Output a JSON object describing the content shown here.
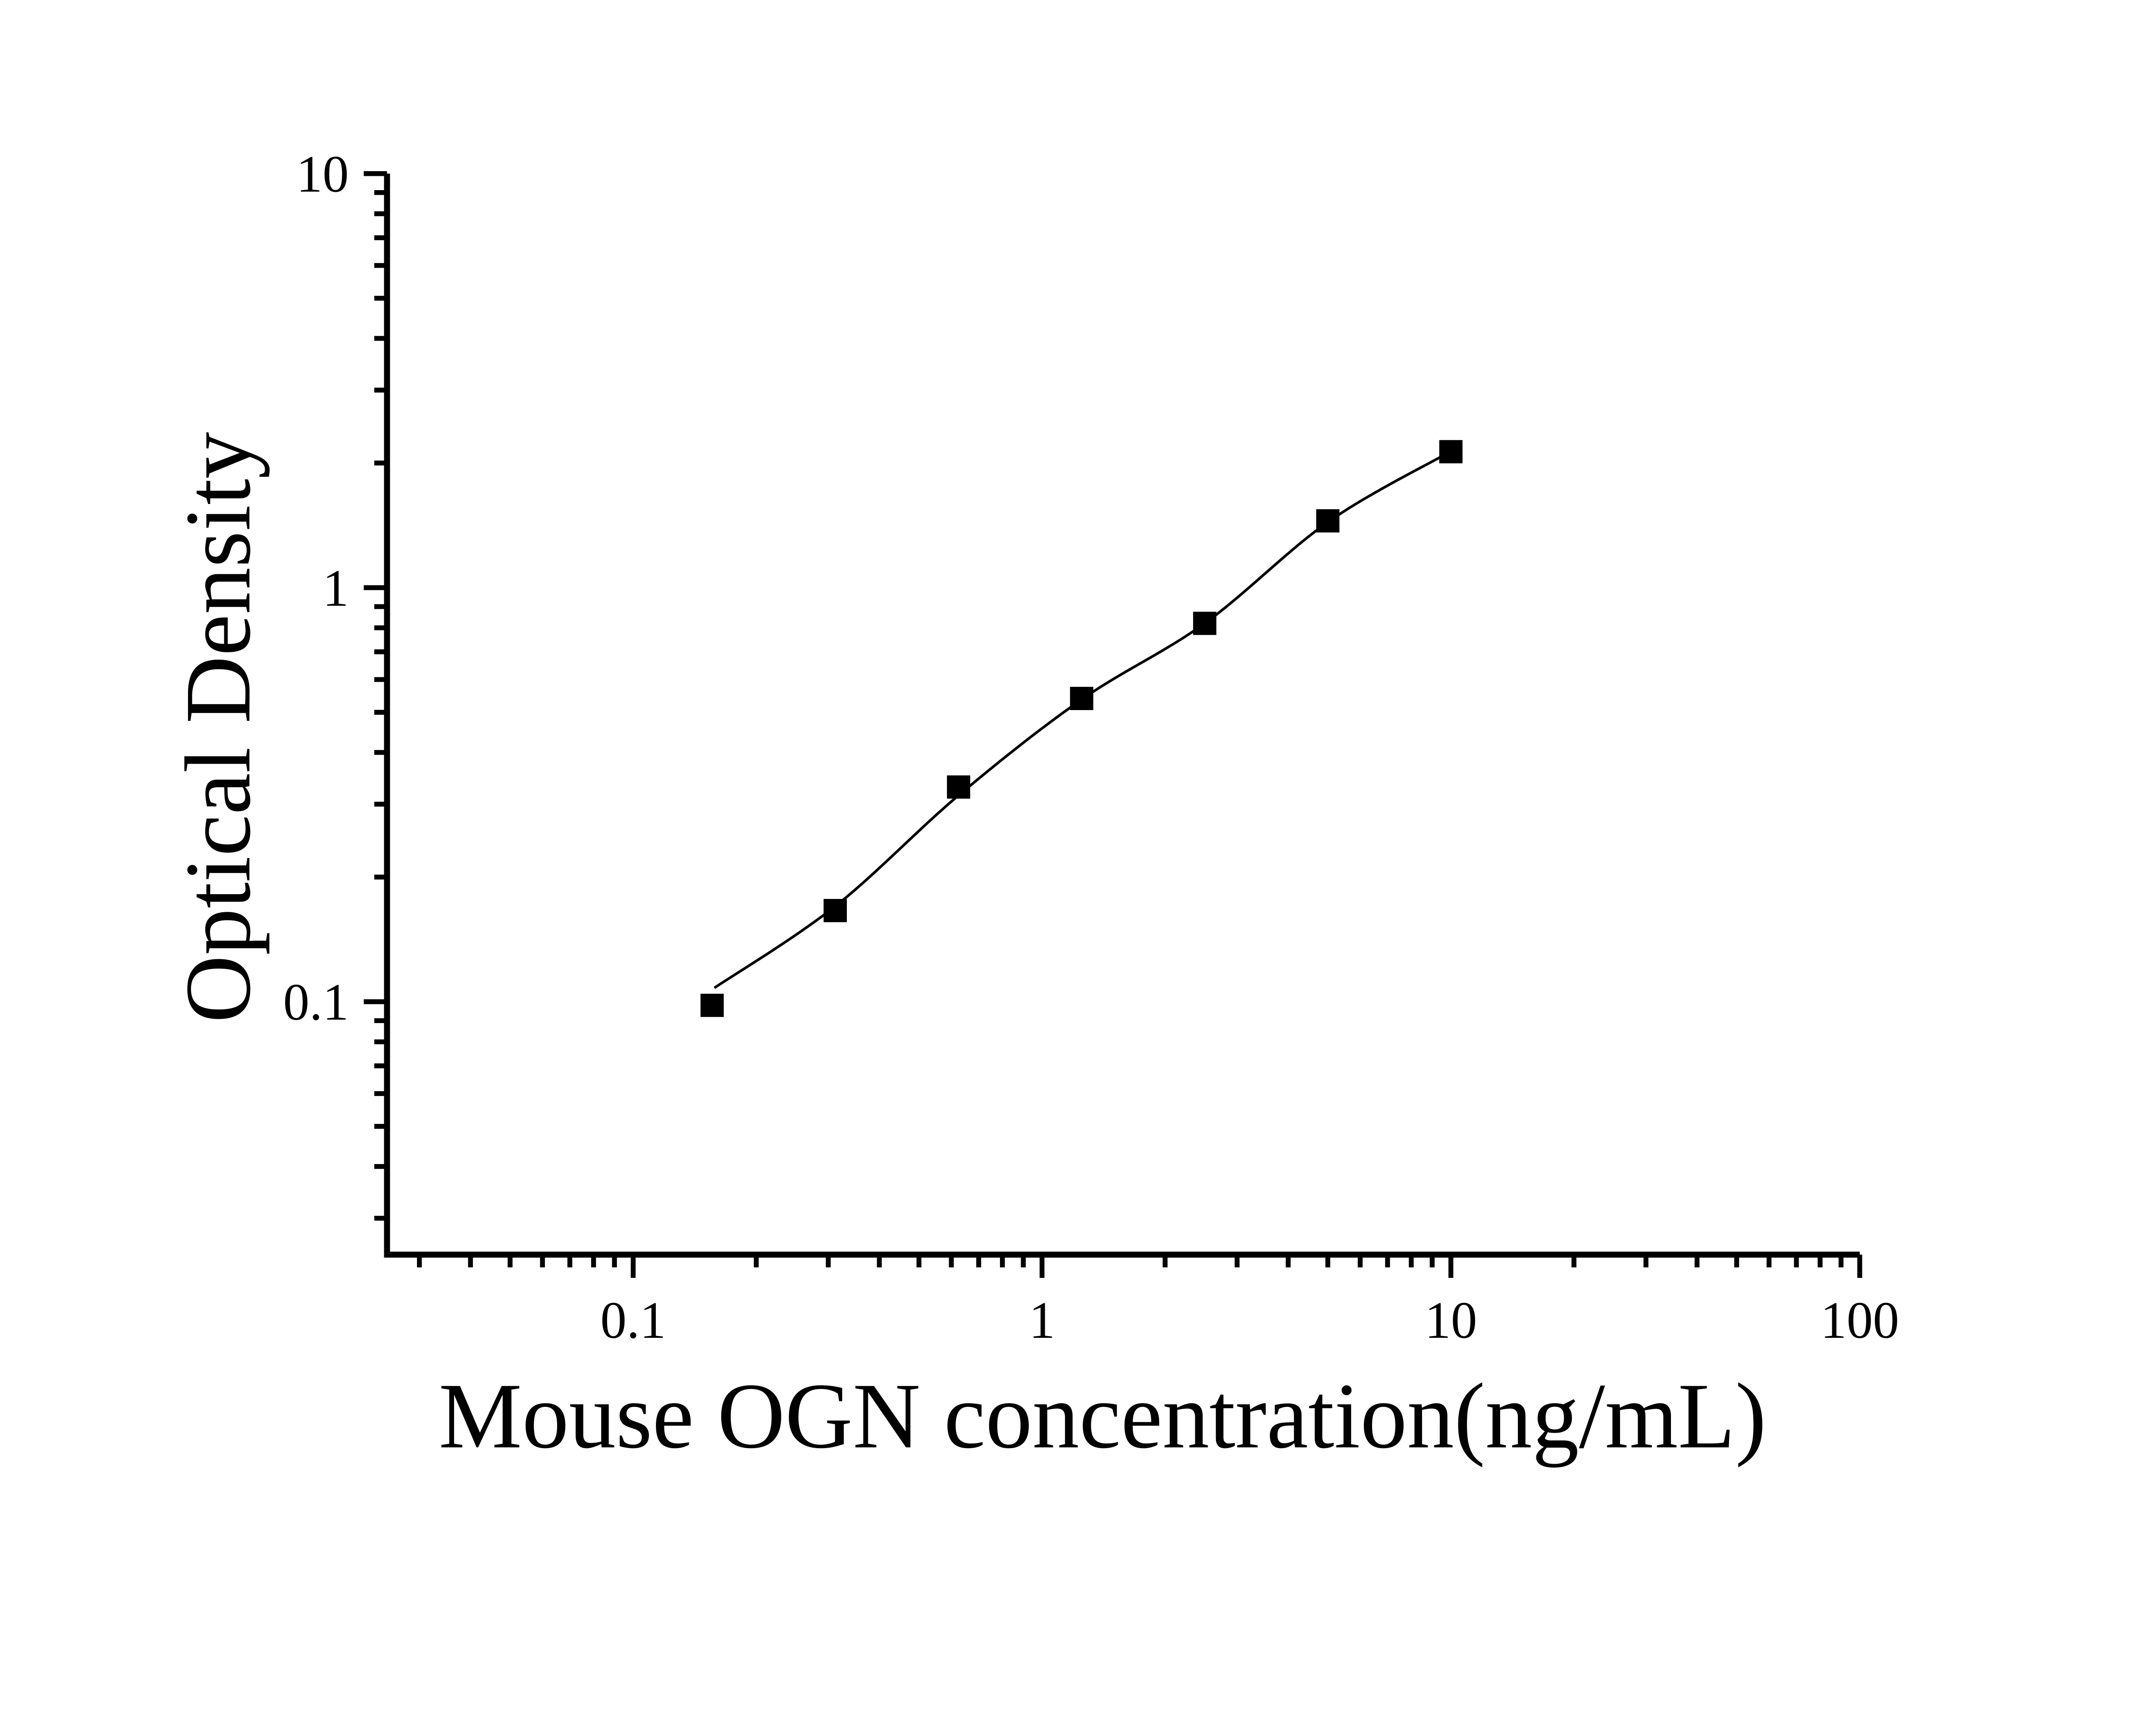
{
  "chart_data": {
    "type": "scatter",
    "title": "",
    "xlabel": "Mouse OGN concentration(ng/mL)",
    "ylabel": "Optical Density",
    "x_scale": "log",
    "y_scale": "log",
    "xlim": [
      0.025,
      100
    ],
    "ylim": [
      0.0245,
      10
    ],
    "grid": false,
    "legend": false,
    "marker": "filled-square",
    "colors": {
      "ink": "#000000",
      "background": "#ffffff"
    },
    "x_major_ticks": [
      {
        "value": 0.1,
        "label": "0.1"
      },
      {
        "value": 1,
        "label": "1"
      },
      {
        "value": 10,
        "label": "10"
      },
      {
        "value": 100,
        "label": "100"
      }
    ],
    "y_major_ticks": [
      {
        "value": 0.1,
        "label": "0.1"
      },
      {
        "value": 1,
        "label": "1"
      },
      {
        "value": 10,
        "label": "10"
      }
    ],
    "x_minor_ticks": [
      0.03,
      0.04,
      0.05,
      0.06,
      0.07,
      0.08,
      0.09,
      0.2,
      0.3,
      0.4,
      0.5,
      0.6,
      0.7,
      0.8,
      0.9,
      2,
      3,
      4,
      5,
      6,
      7,
      8,
      9,
      20,
      30,
      40,
      50,
      60,
      70,
      80,
      90
    ],
    "y_minor_ticks": [
      0.03,
      0.04,
      0.05,
      0.06,
      0.07,
      0.08,
      0.09,
      0.2,
      0.3,
      0.4,
      0.5,
      0.6,
      0.7,
      0.8,
      0.9,
      2,
      3,
      4,
      5,
      6,
      7,
      8,
      9
    ],
    "points": [
      {
        "x": 0.156,
        "y": 0.098
      },
      {
        "x": 0.312,
        "y": 0.166
      },
      {
        "x": 0.625,
        "y": 0.33
      },
      {
        "x": 1.25,
        "y": 0.54
      },
      {
        "x": 2.5,
        "y": 0.82
      },
      {
        "x": 5,
        "y": 1.45
      },
      {
        "x": 10,
        "y": 2.13
      }
    ],
    "fit_curve": [
      [
        0.158,
        0.108
      ],
      [
        0.312,
        0.17
      ],
      [
        0.625,
        0.315
      ],
      [
        1.25,
        0.537
      ],
      [
        2.5,
        0.82
      ],
      [
        5,
        1.44
      ],
      [
        9.7,
        2.1
      ]
    ]
  }
}
